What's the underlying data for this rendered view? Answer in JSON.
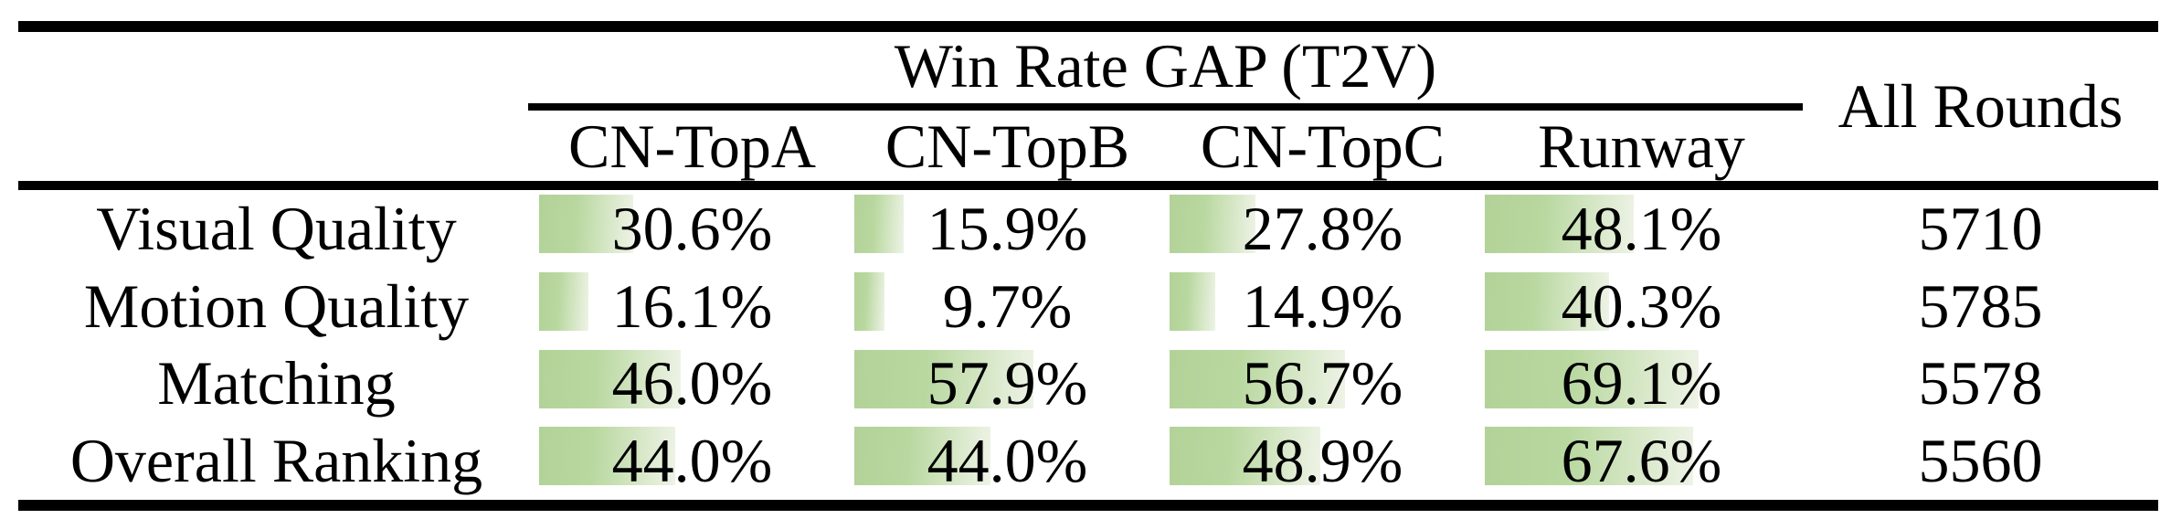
{
  "page": {
    "background": "#ffffff",
    "text_color": "#000000",
    "rule_color": "#000000"
  },
  "table": {
    "title": "Win Rate GAP (T2V)",
    "all_rounds_header": "All Rounds",
    "column_headers": [
      "CN-TopA",
      "CN-TopB",
      "CN-TopC",
      "Runway"
    ],
    "rows": [
      {
        "label": "Visual Quality",
        "cells": [
          "30.6%",
          "15.9%",
          "27.8%",
          "48.1%"
        ],
        "values_pct": [
          30.6,
          15.9,
          27.8,
          48.1
        ],
        "all_rounds": "5710"
      },
      {
        "label": "Motion Quality",
        "cells": [
          "16.1%",
          "9.7%",
          "14.9%",
          "40.3%"
        ],
        "values_pct": [
          16.1,
          9.7,
          14.9,
          40.3
        ],
        "all_rounds": "5785"
      },
      {
        "label": "Matching",
        "cells": [
          "46.0%",
          "57.9%",
          "56.7%",
          "69.1%"
        ],
        "values_pct": [
          46.0,
          57.9,
          56.7,
          69.1
        ],
        "all_rounds": "5578"
      },
      {
        "label": "Overall Ranking",
        "cells": [
          "44.0%",
          "44.0%",
          "48.9%",
          "67.6%"
        ],
        "values_pct": [
          44.0,
          44.0,
          48.9,
          67.6
        ],
        "all_rounds": "5560"
      }
    ],
    "bar_colors": {
      "start": "#b2d298",
      "end": "#eef3e6"
    }
  },
  "chart_data": {
    "type": "table",
    "title": "Win Rate GAP (T2V)",
    "columns": [
      "CN-TopA",
      "CN-TopB",
      "CN-TopC",
      "Runway",
      "All Rounds"
    ],
    "rows": [
      {
        "label": "Visual Quality",
        "win_rate_gap_pct": [
          30.6,
          15.9,
          27.8,
          48.1
        ],
        "all_rounds": 5710
      },
      {
        "label": "Motion Quality",
        "win_rate_gap_pct": [
          16.1,
          9.7,
          14.9,
          40.3
        ],
        "all_rounds": 5785
      },
      {
        "label": "Matching",
        "win_rate_gap_pct": [
          46.0,
          57.9,
          56.7,
          69.1
        ],
        "all_rounds": 5578
      },
      {
        "label": "Overall Ranking",
        "win_rate_gap_pct": [
          44.0,
          44.0,
          48.9,
          67.6
        ],
        "all_rounds": 5560
      }
    ],
    "notes": "Green bars behind percentages have width proportional to value; bars are left-aligned in each column."
  }
}
